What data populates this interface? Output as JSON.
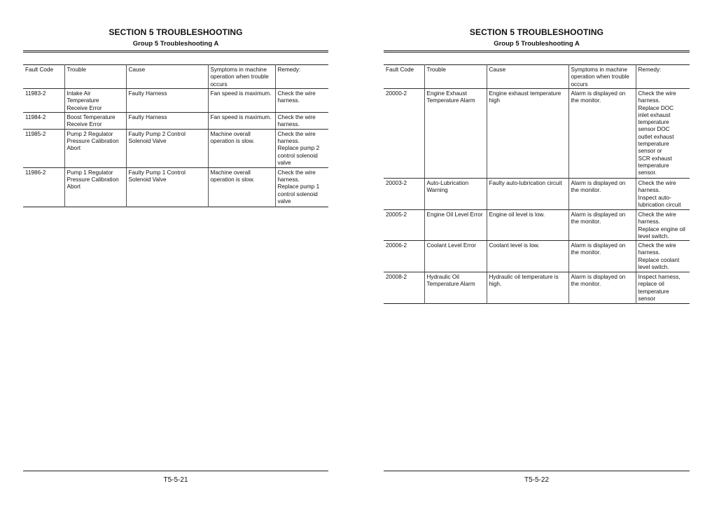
{
  "pages": [
    {
      "title": "SECTION 5 TROUBLESHOOTING",
      "subtitle": "Group 5 Troubleshooting A",
      "page_number": "T5-5-21",
      "columns": [
        "Fault Code",
        "Trouble",
        "Cause",
        "Symptoms in machine\noperation when trouble\noccurs",
        "Remedy:"
      ],
      "rows": [
        [
          "11983-2",
          "Intake Air Temperature\nReceive Error",
          "Faulty Harness",
          "Fan speed is maximum.",
          "Check the wire\nharness."
        ],
        [
          "11984-2",
          "Boost Temperature\nReceive Error",
          "Faulty Harness",
          "Fan speed is maximum.",
          "Check the wire\nharness."
        ],
        [
          "11985-2",
          "Pump 2 Regulator\nPressure Calibration\nAbort",
          "Faulty Pump 2 Control\nSolenoid Valve",
          "Machine overall\noperation is slow.",
          "Check the wire\nharness.\nReplace pump 2\ncontrol solenoid\nvalve"
        ],
        [
          "11986-2",
          "Pump 1 Regulator\nPressure Calibration\nAbort",
          "Faulty Pump 1 Control\nSolenoid Valve",
          "Machine overall\noperation is slow.",
          "Check the wire\nharness.\nReplace pump 1\ncontrol solenoid\nvalve"
        ]
      ]
    },
    {
      "title": "SECTION 5 TROUBLESHOOTING",
      "subtitle": "Group 5 Troubleshooting A",
      "page_number": "T5-5-22",
      "columns": [
        "Fault Code",
        "Trouble",
        "Cause",
        "Symptoms in machine\noperation when trouble\noccurs",
        "Remedy:"
      ],
      "rows": [
        [
          "20000-2",
          "Engine Exhaust\nTemperature Alarm",
          "Engine exhaust temperature\nhigh",
          "Alarm is displayed on\nthe monitor.",
          "Check the wire\nharness.\nReplace DOC\ninlet exhaust\ntemperature\nsensor DOC\noutlet exhaust\ntemperature\nsensor or\nSCR exhaust\ntemperature\nsensor."
        ],
        [
          "20003-2",
          "Auto-Lubrication\nWarning",
          "Faulty auto-lubrication circuit",
          "Alarm is displayed on\nthe monitor.",
          "Check the wire\nharness.\nInspect auto-\nlubrication circuit"
        ],
        [
          "20005-2",
          "Engine Oil Level Error",
          "Engine oil level is low.",
          "Alarm is displayed on\nthe monitor.",
          "Check the wire\nharness.\nReplace engine oil\nlevel switch."
        ],
        [
          "20006-2",
          "Coolant Level Error",
          "Coolant level is low.",
          "Alarm is displayed on\nthe monitor.",
          "Check the wire\nharness.\nReplace coolant\nlevel switch."
        ],
        [
          "20008-2",
          "Hydraulic Oil\nTemperature Alarm",
          "Hydraulic oil temperature is\nhigh.",
          "Alarm is displayed on\nthe monitor.",
          "Inspect harness,\nreplace oil\ntemperature\nsensor"
        ]
      ]
    }
  ]
}
